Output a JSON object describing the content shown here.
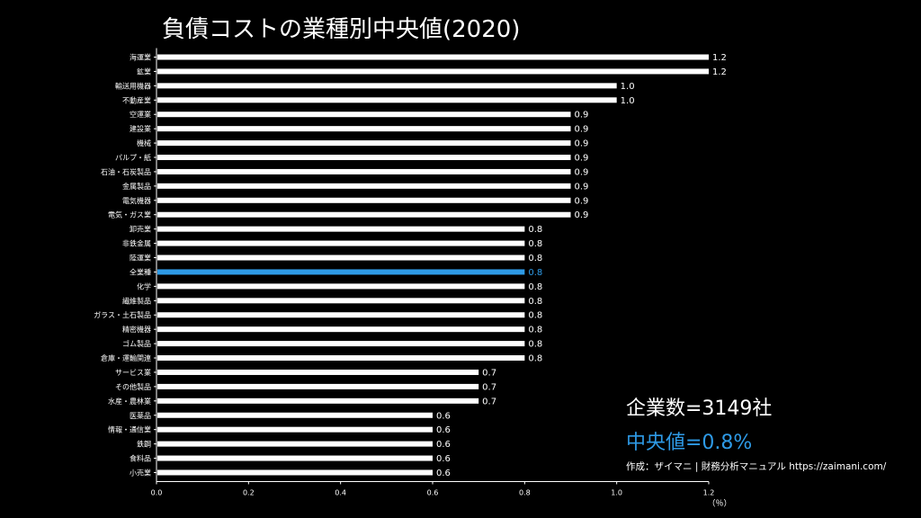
{
  "chart_data": {
    "type": "bar",
    "orientation": "horizontal",
    "title": "負債コストの業種別中央値(2020)",
    "xlabel": "（％）",
    "ylabel": "",
    "xlim": [
      0,
      1.2
    ],
    "xticks": [
      "0.0",
      "0.2",
      "0.4",
      "0.6",
      "0.8",
      "1.0",
      "1.2"
    ],
    "grid": false,
    "highlight_category": "全業種",
    "bar_color": "#ffffff",
    "highlight_color": "#2e9ae6",
    "background": "#000000",
    "categories": [
      "海運業",
      "鉱業",
      "輸送用機器",
      "不動産業",
      "空運業",
      "建設業",
      "機械",
      "パルプ・紙",
      "石油・石炭製品",
      "金属製品",
      "電気機器",
      "電気・ガス業",
      "卸売業",
      "非鉄金属",
      "陸運業",
      "全業種",
      "化学",
      "繊維製品",
      "ガラス・土石製品",
      "精密機器",
      "ゴム製品",
      "倉庫・運輸関連",
      "サービス業",
      "その他製品",
      "水産・農林業",
      "医薬品",
      "情報・通信業",
      "鉄鋼",
      "食料品",
      "小売業"
    ],
    "values": [
      1.2,
      1.2,
      1.0,
      1.0,
      0.9,
      0.9,
      0.9,
      0.9,
      0.9,
      0.9,
      0.9,
      0.9,
      0.8,
      0.8,
      0.8,
      0.8,
      0.8,
      0.8,
      0.8,
      0.8,
      0.8,
      0.8,
      0.7,
      0.7,
      0.7,
      0.6,
      0.6,
      0.6,
      0.6,
      0.6
    ],
    "value_labels": [
      "1.2",
      "1.2",
      "1.0",
      "1.0",
      "0.9",
      "0.9",
      "0.9",
      "0.9",
      "0.9",
      "0.9",
      "0.9",
      "0.9",
      "0.8",
      "0.8",
      "0.8",
      "0.8",
      "0.8",
      "0.8",
      "0.8",
      "0.8",
      "0.8",
      "0.8",
      "0.7",
      "0.7",
      "0.7",
      "0.6",
      "0.6",
      "0.6",
      "0.6",
      "0.6"
    ]
  },
  "info": {
    "company_count": "企業数=3149社",
    "median": "中央値=0.8%",
    "credit": "作成：ザイマニ | 財務分析マニュアル https://zaimani.com/"
  }
}
